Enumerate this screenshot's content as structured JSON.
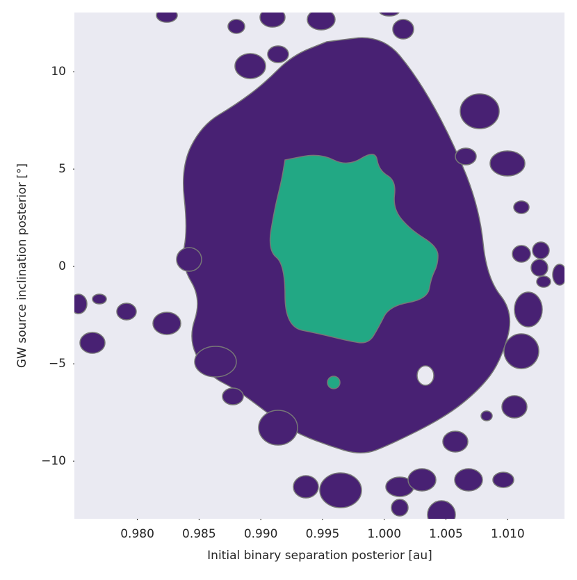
{
  "chart_data": {
    "type": "contour",
    "x_label": "Initial binary separation posterior [au]",
    "y_label": "GW source inclination posterior [°]",
    "xlim": [
      0.9749,
      1.0146
    ],
    "ylim": [
      -12.96,
      13.04
    ],
    "xticks": [
      {
        "value": 0.98,
        "label": "0.980"
      },
      {
        "value": 0.985,
        "label": "0.985"
      },
      {
        "value": 0.99,
        "label": "0.990"
      },
      {
        "value": 0.995,
        "label": "0.995"
      },
      {
        "value": 1.0,
        "label": "1.000"
      },
      {
        "value": 1.005,
        "label": "1.005"
      },
      {
        "value": 1.01,
        "label": "1.010"
      }
    ],
    "yticks": [
      {
        "value": -10,
        "label": "−10"
      },
      {
        "value": -5,
        "label": "−5"
      },
      0,
      5,
      10
    ],
    "colors": [
      "#482173",
      "#22a884"
    ],
    "background": "#eaeaf2",
    "grid": false
  }
}
